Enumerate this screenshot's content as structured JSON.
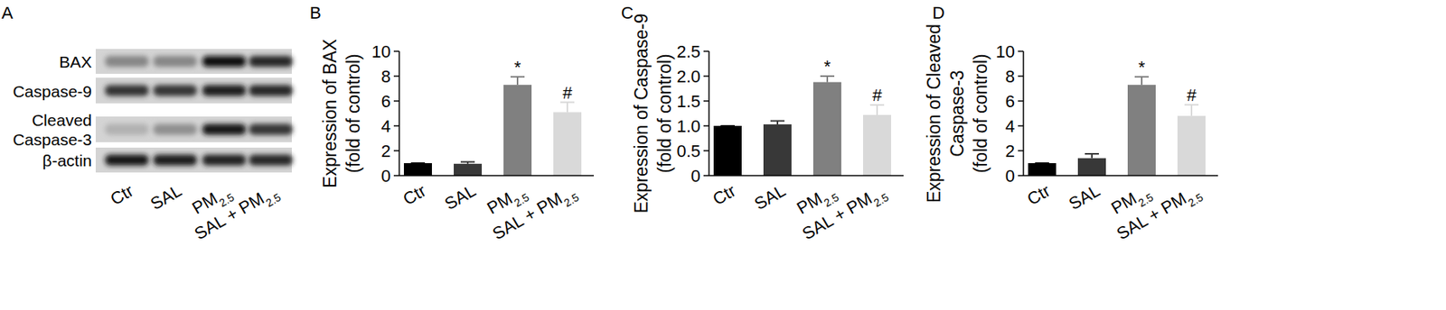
{
  "panels": [
    "A",
    "B",
    "C",
    "D"
  ],
  "blot": {
    "rows": [
      [
        "BAX"
      ],
      [
        "Caspase-9"
      ],
      [
        "Cleaved",
        "Caspase-3"
      ],
      [
        "β-actin"
      ]
    ],
    "lanes": [
      "Ctr",
      "SAL",
      "PM2.5",
      "SAL + PM2.5"
    ]
  },
  "chart_data": [
    {
      "type": "bar",
      "ylabel": [
        "Expression of BAX",
        "(fold of control)"
      ],
      "categories": [
        "Ctr",
        "SAL",
        "PM2.5",
        "SAL + PM2.5"
      ],
      "values": [
        1.0,
        0.95,
        7.3,
        5.1
      ],
      "errors": [
        0,
        0.15,
        0.65,
        0.8
      ],
      "annotations": [
        null,
        null,
        "*",
        "#"
      ],
      "colors": [
        "#000000",
        "#383838",
        "#808080",
        "#d9d9d9"
      ],
      "ylim": [
        0,
        10
      ],
      "yticks": [
        0,
        2,
        4,
        6,
        8,
        10
      ]
    },
    {
      "type": "bar",
      "ylabel": [
        "Expression of Caspase-9",
        "(fold of control)"
      ],
      "categories": [
        "Ctr",
        "SAL",
        "PM2.5",
        "SAL + PM2.5"
      ],
      "values": [
        1.0,
        1.03,
        1.88,
        1.22
      ],
      "errors": [
        0,
        0.07,
        0.12,
        0.2
      ],
      "annotations": [
        null,
        null,
        "*",
        "#"
      ],
      "colors": [
        "#000000",
        "#383838",
        "#808080",
        "#d9d9d9"
      ],
      "ylim": [
        0,
        2.5
      ],
      "yticks": [
        0,
        0.5,
        {
          "value": 1,
          "label": "1.0"
        },
        1.5,
        {
          "value": 2,
          "label": "2.0"
        },
        2.5
      ]
    },
    {
      "type": "bar",
      "ylabel": [
        "Expression of Cleaved",
        "Caspase-3",
        "(fold of control)"
      ],
      "categories": [
        "Ctr",
        "SAL",
        "PM2.5",
        "SAL + PM2.5"
      ],
      "values": [
        1.0,
        1.4,
        7.3,
        4.8
      ],
      "errors": [
        0,
        0.35,
        0.65,
        0.9
      ],
      "annotations": [
        null,
        null,
        "*",
        "#"
      ],
      "colors": [
        "#000000",
        "#383838",
        "#808080",
        "#d9d9d9"
      ],
      "ylim": [
        0,
        10
      ],
      "yticks": [
        0,
        2,
        4,
        6,
        8,
        10
      ]
    }
  ]
}
